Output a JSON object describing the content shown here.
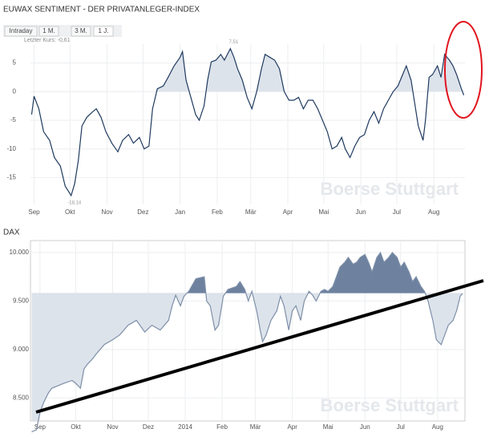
{
  "tabs": [
    "Intraday",
    "1 M.",
    "3 M.",
    "1 J."
  ],
  "chart_data": [
    {
      "type": "line",
      "title": "EUWAX SENTIMENT - DER PRIVATANLEGER-INDEX",
      "last_label": "Letzter Kurs: -0,61",
      "watermark": "Boerse Stuttgart",
      "color": "#1f3a5f",
      "fill_above": "#dde3eb",
      "baseline": 0,
      "grid": true,
      "x": [
        -2,
        0,
        4,
        8,
        13,
        17,
        22,
        26,
        31,
        34,
        37,
        40,
        44,
        49,
        52,
        56,
        60,
        65,
        70,
        74,
        79,
        83,
        88,
        92,
        96,
        99,
        103,
        108,
        112,
        117,
        122,
        124,
        127,
        131,
        135,
        138,
        142,
        145,
        148,
        152,
        156,
        159,
        164,
        167,
        170,
        174,
        178,
        182,
        186,
        190,
        193,
        197,
        201,
        205,
        209,
        213,
        217,
        221,
        225,
        229,
        233,
        237,
        241,
        245,
        249,
        253,
        257,
        260,
        264,
        268,
        272,
        276,
        280,
        284,
        288,
        292,
        296,
        300,
        304,
        308,
        311,
        315,
        318,
        321,
        325,
        327,
        330,
        333,
        337,
        340,
        343,
        347,
        350,
        353,
        357,
        359
      ],
      "values": [
        -4,
        -0.8,
        -3,
        -7,
        -8.5,
        -11.5,
        -13,
        -16.5,
        -18.14,
        -16,
        -12,
        -6,
        -4.5,
        -3.5,
        -3,
        -4.5,
        -7,
        -9,
        -10.5,
        -8.5,
        -7.5,
        -9,
        -8,
        -10,
        -9.5,
        -3,
        0.5,
        1,
        2.5,
        4.5,
        6,
        7,
        2,
        -1,
        -4,
        -5,
        -2.5,
        2,
        5.2,
        5.5,
        6.5,
        5.5,
        7.51,
        6,
        4,
        2,
        -1,
        -3,
        0,
        4,
        6.5,
        6,
        5.5,
        4,
        0,
        -1.5,
        -1.5,
        -1,
        -3,
        -1.5,
        -1.5,
        -3,
        -5,
        -7,
        -10,
        -9.5,
        -8,
        -10,
        -11.5,
        -9.5,
        -8,
        -7.5,
        -5,
        -3.5,
        -5.5,
        -3,
        -1.5,
        0,
        1,
        3,
        4.5,
        2,
        -2,
        -6,
        -8.5,
        -5,
        2.5,
        3,
        4.5,
        2.5,
        6.5,
        5.5,
        4.5,
        3,
        0.5,
        -0.61
      ],
      "xlim": [
        -3,
        360
      ],
      "ylim": [
        -19.7,
        8.3
      ],
      "yticks": [
        -15,
        -10,
        -5,
        0,
        5
      ],
      "xticks": [
        {
          "value": 0,
          "label": "Sep"
        },
        {
          "value": 30,
          "label": "Okt"
        },
        {
          "value": 61,
          "label": "Nov"
        },
        {
          "value": 91,
          "label": "Dez"
        },
        {
          "value": 122,
          "label": "Jan"
        },
        {
          "value": 153,
          "label": "Feb"
        },
        {
          "value": 181,
          "label": "Mär"
        },
        {
          "value": 212,
          "label": "Apr"
        },
        {
          "value": 242,
          "label": "Mai"
        },
        {
          "value": 273,
          "label": "Jun"
        },
        {
          "value": 303,
          "label": "Jul"
        },
        {
          "value": 334,
          "label": "Aug"
        }
      ],
      "annotations": [
        {
          "label": "7,51",
          "x": 164,
          "value": 7.51
        },
        {
          "label": "-18,14",
          "x": 31,
          "value": -18.14
        }
      ]
    },
    {
      "type": "line",
      "title": "DAX",
      "watermark": "Boerse Stuttgart",
      "color": "#7d8fa8",
      "fill_above": "#6e82a0",
      "fill_below": "#dde3eb",
      "baseline": 9580,
      "grid": true,
      "x": [
        -7,
        -3,
        0,
        3,
        7,
        10,
        14,
        20,
        27,
        30,
        34,
        37,
        40,
        44,
        47,
        54,
        61,
        67,
        74,
        81,
        88,
        94,
        101,
        108,
        111,
        114,
        118,
        121,
        125,
        131,
        138,
        140,
        143,
        147,
        150,
        154,
        158,
        165,
        168,
        172,
        175,
        178,
        182,
        185,
        187,
        190,
        194,
        199,
        202,
        205,
        209,
        212,
        215,
        219,
        222,
        226,
        229,
        232,
        236,
        239,
        242,
        246,
        249,
        252,
        256,
        259,
        263,
        266,
        269,
        273,
        276,
        279,
        283,
        286,
        289,
        293,
        296,
        300,
        303,
        306,
        310,
        313,
        316,
        320,
        323,
        326,
        330,
        333,
        337,
        340,
        343,
        347,
        350,
        353,
        355
      ],
      "values": [
        8150,
        8170,
        8350,
        8450,
        8550,
        8600,
        8620,
        8650,
        8680,
        8650,
        8600,
        8800,
        8850,
        8900,
        8950,
        9050,
        9100,
        9150,
        9250,
        9300,
        9180,
        9250,
        9200,
        9300,
        9450,
        9560,
        9450,
        9550,
        9600,
        9730,
        9750,
        9500,
        9450,
        9200,
        9250,
        9550,
        9620,
        9650,
        9700,
        9620,
        9500,
        9600,
        9400,
        9200,
        9080,
        9150,
        9300,
        9400,
        9550,
        9450,
        9200,
        9400,
        9450,
        9300,
        9500,
        9600,
        9560,
        9500,
        9600,
        9620,
        9600,
        9650,
        9750,
        9850,
        9900,
        9950,
        9880,
        9900,
        9950,
        9980,
        9900,
        9800,
        9950,
        10000,
        9900,
        9950,
        10000,
        9950,
        9850,
        9900,
        9800,
        9700,
        9750,
        9650,
        9600,
        9500,
        9300,
        9100,
        9050,
        9150,
        9250,
        9300,
        9400,
        9550,
        9580
      ],
      "xlim": [
        -8,
        357
      ],
      "ylim": [
        8262,
        10124
      ],
      "yticks": [
        {
          "value": 8500,
          "label": "8.500"
        },
        {
          "value": 9000,
          "label": "9.000"
        },
        {
          "value": 9500,
          "label": "9.500"
        },
        {
          "value": 10000,
          "label": "10.000"
        }
      ],
      "xticks": [
        {
          "value": 0,
          "label": "Sep"
        },
        {
          "value": 30,
          "label": "Okt"
        },
        {
          "value": 61,
          "label": "Nov"
        },
        {
          "value": 91,
          "label": "Dez"
        },
        {
          "value": 122,
          "label": "2014"
        },
        {
          "value": 153,
          "label": "Feb"
        },
        {
          "value": 181,
          "label": "Mär"
        },
        {
          "value": 212,
          "label": "Apr"
        },
        {
          "value": 242,
          "label": "Mai"
        },
        {
          "value": 273,
          "label": "Jun"
        },
        {
          "value": 303,
          "label": "Jul"
        },
        {
          "value": 334,
          "label": "Aug"
        }
      ]
    }
  ]
}
